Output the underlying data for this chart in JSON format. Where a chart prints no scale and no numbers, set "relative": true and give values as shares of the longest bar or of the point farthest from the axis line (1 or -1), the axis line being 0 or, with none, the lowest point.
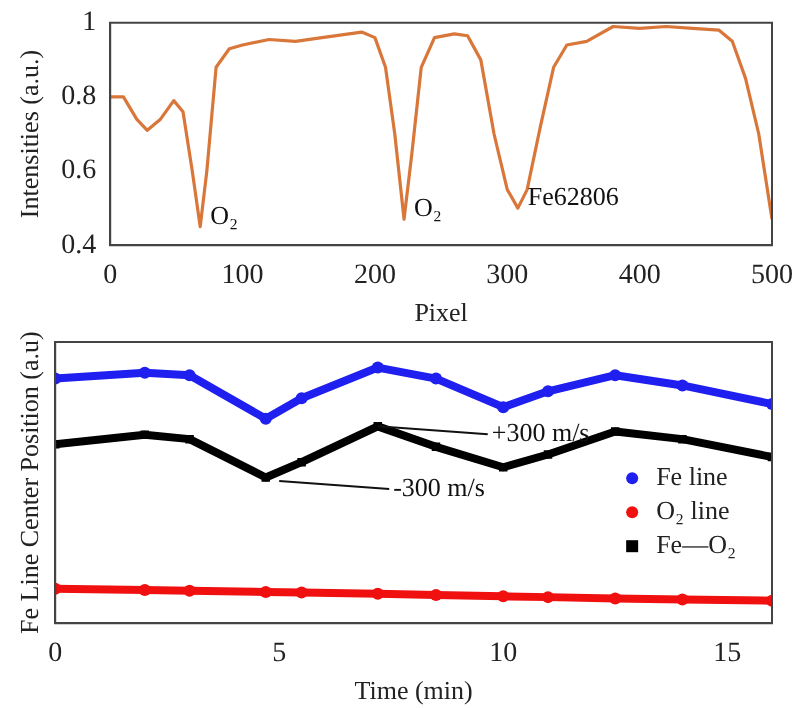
{
  "chart_data": [
    {
      "type": "line",
      "xlabel": "Pixel",
      "ylabel": "Intensities (a.u.)",
      "x": [
        0,
        10,
        20,
        28,
        38,
        48,
        55,
        62,
        68,
        73,
        80,
        90,
        100,
        120,
        140,
        160,
        190,
        200,
        208,
        215,
        222,
        228,
        235,
        245,
        260,
        270,
        280,
        290,
        300,
        308,
        315,
        325,
        335,
        345,
        360,
        380,
        400,
        420,
        440,
        460,
        470,
        480,
        490,
        500
      ],
      "series": [
        {
          "color": "#d9773a",
          "values": [
            0.8,
            0.8,
            0.74,
            0.71,
            0.74,
            0.79,
            0.76,
            0.6,
            0.45,
            0.6,
            0.88,
            0.93,
            0.94,
            0.955,
            0.95,
            0.96,
            0.975,
            0.96,
            0.88,
            0.7,
            0.47,
            0.65,
            0.88,
            0.96,
            0.97,
            0.965,
            0.9,
            0.7,
            0.55,
            0.5,
            0.55,
            0.72,
            0.88,
            0.94,
            0.95,
            0.99,
            0.985,
            0.99,
            0.985,
            0.98,
            0.95,
            0.85,
            0.7,
            0.47
          ]
        }
      ],
      "xlim": [
        0,
        500
      ],
      "xticks": [
        0,
        100,
        200,
        300,
        400,
        500
      ],
      "ylim": [
        0.4,
        1
      ],
      "yticks": [
        0.4,
        0.6,
        0.8,
        1
      ],
      "annotations": [
        {
          "text": "O₂",
          "x": 68,
          "y": 0.45
        },
        {
          "text": "O₂",
          "x": 222,
          "y": 0.47
        },
        {
          "text": "Fe62806",
          "x": 308,
          "y": 0.5
        }
      ],
      "legend": false,
      "grid": false
    },
    {
      "type": "line",
      "xlabel": "Time (min)",
      "ylabel": "Fe Line Center Position (a.u)",
      "relative": true,
      "x": [
        0,
        2,
        3,
        4.7,
        5.5,
        7.2,
        8.5,
        10,
        11,
        12.5,
        14,
        16
      ],
      "series": [
        {
          "name": "Fe line",
          "color": "#1f1ff0",
          "marker": "circle",
          "values": [
            0.957,
            0.98,
            0.97,
            0.8,
            0.88,
            1.0,
            0.957,
            0.845,
            0.907,
            0.97,
            0.93,
            0.857
          ]
        },
        {
          "name": "O₂ line",
          "color": "#f01010",
          "marker": "circle",
          "values": [
            0.135,
            0.13,
            0.127,
            0.122,
            0.12,
            0.115,
            0.11,
            0.105,
            0.102,
            0.097,
            0.093,
            0.088
          ]
        },
        {
          "name": "Fe—O₂",
          "color": "#000000",
          "marker": "square",
          "values": [
            0.7,
            0.737,
            0.72,
            0.57,
            0.63,
            0.77,
            0.69,
            0.61,
            0.66,
            0.75,
            0.72,
            0.65
          ]
        }
      ],
      "xlim": [
        0,
        16
      ],
      "xticks": [
        0,
        5,
        10,
        15
      ],
      "annotations": [
        {
          "text": "+300 m/s",
          "x": 7.2,
          "y": 0.77
        },
        {
          "text": "-300 m/s",
          "x": 5,
          "y": 0.556
        }
      ],
      "legend": "bottom right",
      "grid": false
    }
  ]
}
